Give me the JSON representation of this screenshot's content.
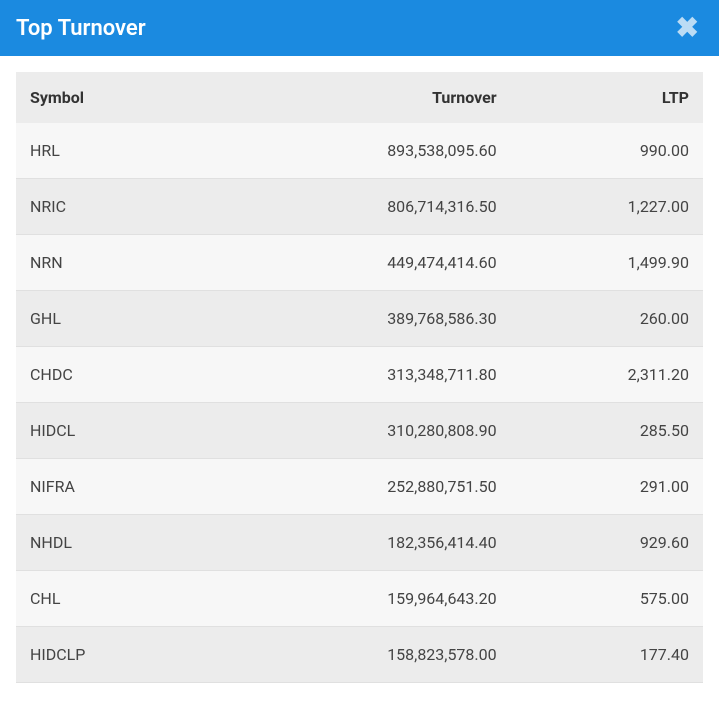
{
  "header": {
    "title": "Top Turnover"
  },
  "colors": {
    "header_bg": "#1b8ae0",
    "header_text": "#ffffff",
    "row_odd": "#f7f7f7",
    "row_even": "#ececec",
    "thead_bg": "#ececec",
    "text": "#444444"
  },
  "table": {
    "columns": [
      "Symbol",
      "Turnover",
      "LTP"
    ],
    "rows": [
      {
        "symbol": "HRL",
        "turnover": "893,538,095.60",
        "ltp": "990.00"
      },
      {
        "symbol": "NRIC",
        "turnover": "806,714,316.50",
        "ltp": "1,227.00"
      },
      {
        "symbol": "NRN",
        "turnover": "449,474,414.60",
        "ltp": "1,499.90"
      },
      {
        "symbol": "GHL",
        "turnover": "389,768,586.30",
        "ltp": "260.00"
      },
      {
        "symbol": "CHDC",
        "turnover": "313,348,711.80",
        "ltp": "2,311.20"
      },
      {
        "symbol": "HIDCL",
        "turnover": "310,280,808.90",
        "ltp": "285.50"
      },
      {
        "symbol": "NIFRA",
        "turnover": "252,880,751.50",
        "ltp": "291.00"
      },
      {
        "symbol": "NHDL",
        "turnover": "182,356,414.40",
        "ltp": "929.60"
      },
      {
        "symbol": "CHL",
        "turnover": "159,964,643.20",
        "ltp": "575.00"
      },
      {
        "symbol": "HIDCLP",
        "turnover": "158,823,578.00",
        "ltp": "177.40"
      }
    ]
  }
}
